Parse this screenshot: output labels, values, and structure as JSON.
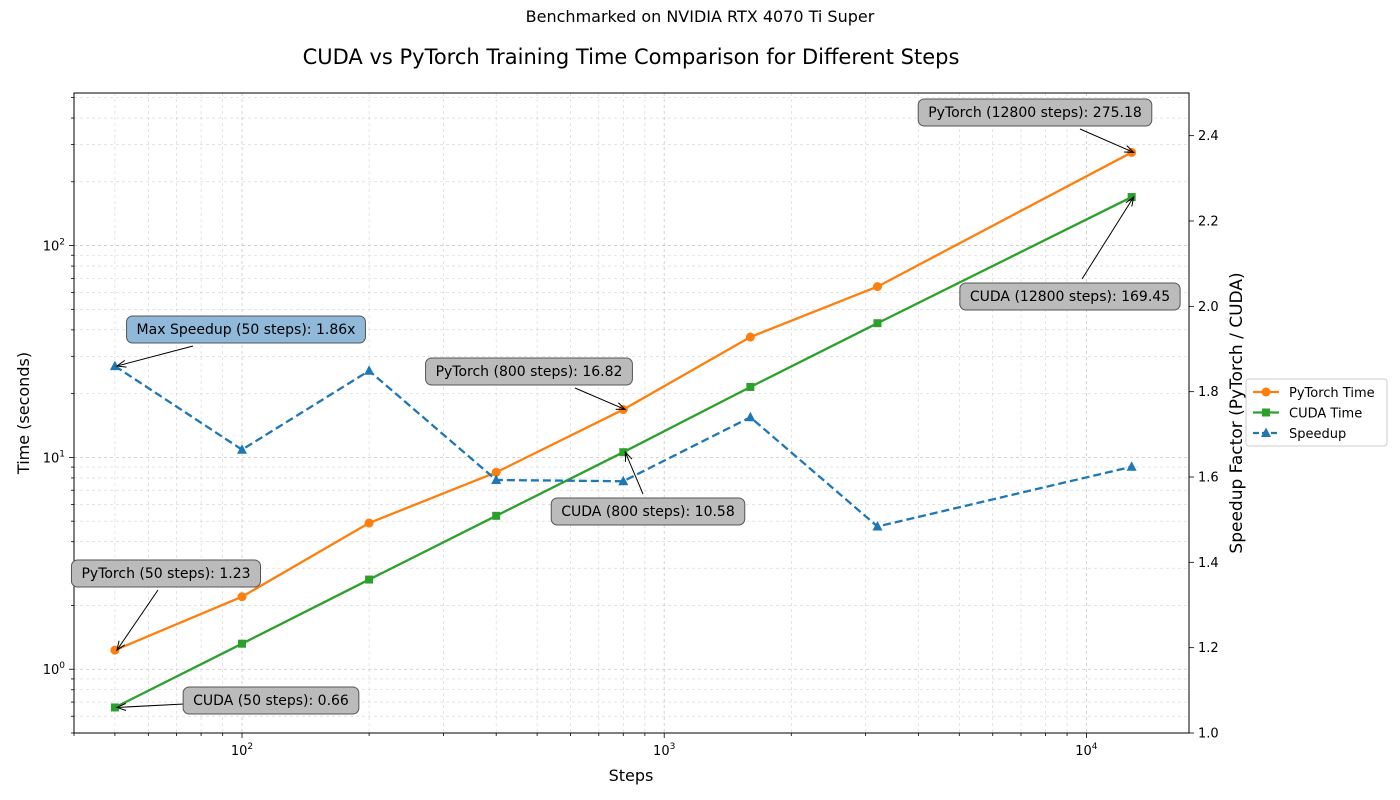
{
  "chart_data": {
    "type": "line",
    "suptitle": "Benchmarked on NVIDIA RTX 4070 Ti Super",
    "title": "CUDA vs PyTorch Training Time Comparison for Different Steps",
    "xlabel": "Steps",
    "ylabel_left": "Time (seconds)",
    "ylabel_right": "Speedup Factor (PyTorch / CUDA)",
    "x_scale": "log",
    "y_left_scale": "log",
    "x": [
      50,
      100,
      200,
      400,
      800,
      1600,
      3200,
      12800
    ],
    "xlim": [
      40,
      17500
    ],
    "y_left_lim": [
      0.5,
      525
    ],
    "y_right_lim": [
      1.0,
      2.5
    ],
    "grid": true,
    "legend_position": "right-outside",
    "x_ticks": [
      {
        "value": 100,
        "base": "10",
        "exp": "2"
      },
      {
        "value": 1000,
        "base": "10",
        "exp": "3"
      },
      {
        "value": 10000,
        "base": "10",
        "exp": "4"
      }
    ],
    "y_left_ticks": [
      {
        "value": 1,
        "base": "10",
        "exp": "0"
      },
      {
        "value": 10,
        "base": "10",
        "exp": "1"
      },
      {
        "value": 100,
        "base": "10",
        "exp": "2"
      }
    ],
    "y_right_ticks": [
      "1.0",
      "1.2",
      "1.4",
      "1.6",
      "1.8",
      "2.0",
      "2.2",
      "2.4"
    ],
    "series": [
      {
        "name": "PyTorch Time",
        "axis": "left",
        "color": "#ff7f0e",
        "marker": "circle",
        "dash": "solid",
        "values": [
          1.23,
          2.2,
          4.9,
          8.5,
          16.82,
          37,
          64,
          275.18
        ]
      },
      {
        "name": "CUDA Time",
        "axis": "left",
        "color": "#2ca02c",
        "marker": "square",
        "dash": "solid",
        "values": [
          0.66,
          1.32,
          2.65,
          5.3,
          10.58,
          21.5,
          43,
          169.45
        ]
      },
      {
        "name": "Speedup",
        "axis": "right",
        "color": "#1f77b4",
        "marker": "triangle",
        "dash": "dashed",
        "values": [
          1.86,
          1.664,
          1.849,
          1.593,
          1.59,
          1.74,
          1.484,
          1.624
        ]
      }
    ],
    "annotations": [
      {
        "text": "Max Speedup (50 steps): 1.86x",
        "bg": "#8fb8d9",
        "target_axis": "right",
        "tx": 50,
        "ty": 1.86
      },
      {
        "text": "PyTorch (800 steps): 16.82",
        "bg": "#bbbbbb",
        "target_axis": "left",
        "tx": 800,
        "ty": 16.82
      },
      {
        "text": "CUDA (800 steps): 10.58",
        "bg": "#bbbbbb",
        "target_axis": "left",
        "tx": 800,
        "ty": 10.58
      },
      {
        "text": "PyTorch (50 steps): 1.23",
        "bg": "#bbbbbb",
        "target_axis": "left",
        "tx": 50,
        "ty": 1.23
      },
      {
        "text": "CUDA (50 steps): 0.66",
        "bg": "#bbbbbb",
        "target_axis": "left",
        "tx": 50,
        "ty": 0.66
      },
      {
        "text": "PyTorch (12800 steps): 275.18",
        "bg": "#bbbbbb",
        "target_axis": "left",
        "tx": 12800,
        "ty": 275.18
      },
      {
        "text": "CUDA (12800 steps): 169.45",
        "bg": "#bbbbbb",
        "target_axis": "left",
        "tx": 12800,
        "ty": 169.45
      }
    ]
  }
}
